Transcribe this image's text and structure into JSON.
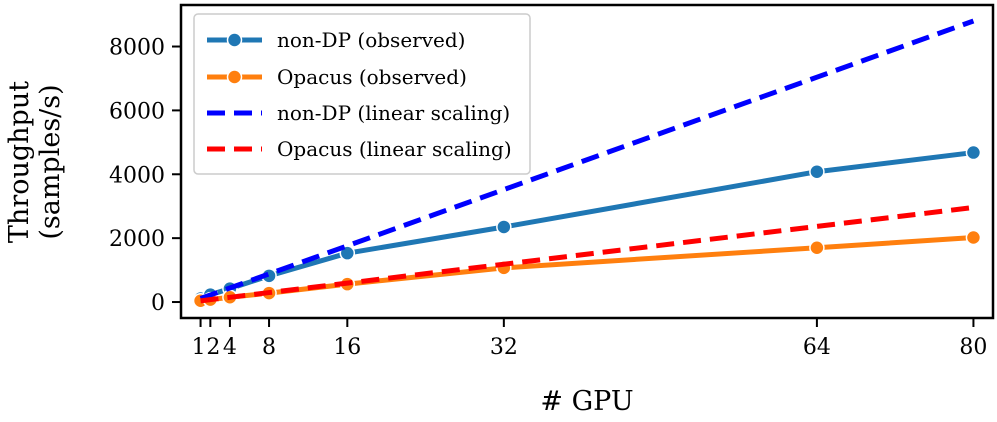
{
  "chart_data": {
    "type": "line",
    "title": "",
    "xlabel": "# GPU",
    "ylabel": [
      "Throughput",
      "(samples/s)"
    ],
    "x": [
      1,
      2,
      4,
      8,
      16,
      32,
      64,
      80
    ],
    "x_ticks": [
      1,
      2,
      4,
      8,
      16,
      32,
      64,
      80
    ],
    "x_tick_labels": [
      "1",
      "2",
      "4",
      "8",
      "16",
      "32",
      "64",
      "80"
    ],
    "y_ticks": [
      0,
      2000,
      4000,
      6000,
      8000
    ],
    "y_tick_labels": [
      "0",
      "2000",
      "4000",
      "6000",
      "8000"
    ],
    "xlim": [
      -1,
      82
    ],
    "ylim": [
      -500,
      9300
    ],
    "grid": false,
    "legend_position": "top-left",
    "series": [
      {
        "name": "non-DP (observed)",
        "style": "solid-marker",
        "color": "#1f77b4",
        "x": [
          1,
          2,
          4,
          8,
          16,
          32,
          64,
          80
        ],
        "values": [
          110,
          230,
          420,
          820,
          1530,
          2350,
          4080,
          4680
        ]
      },
      {
        "name": "Opacus (observed)",
        "style": "solid-marker",
        "color": "#ff7f0e",
        "x": [
          1,
          2,
          4,
          8,
          16,
          32,
          64,
          80
        ],
        "values": [
          40,
          75,
          150,
          280,
          560,
          1070,
          1700,
          2020
        ]
      },
      {
        "name": "non-DP (linear scaling)",
        "style": "dashed",
        "color": "#0000ff",
        "x": [
          1,
          2,
          4,
          8,
          16,
          32,
          64,
          80
        ],
        "values": [
          110,
          220,
          440,
          880,
          1760,
          3520,
          7040,
          8800
        ]
      },
      {
        "name": "Opacus (linear scaling)",
        "style": "dashed",
        "color": "#ff0000",
        "x": [
          1,
          2,
          4,
          8,
          16,
          32,
          64,
          80
        ],
        "values": [
          37,
          74,
          148,
          296,
          592,
          1184,
          2368,
          2960
        ]
      }
    ]
  }
}
